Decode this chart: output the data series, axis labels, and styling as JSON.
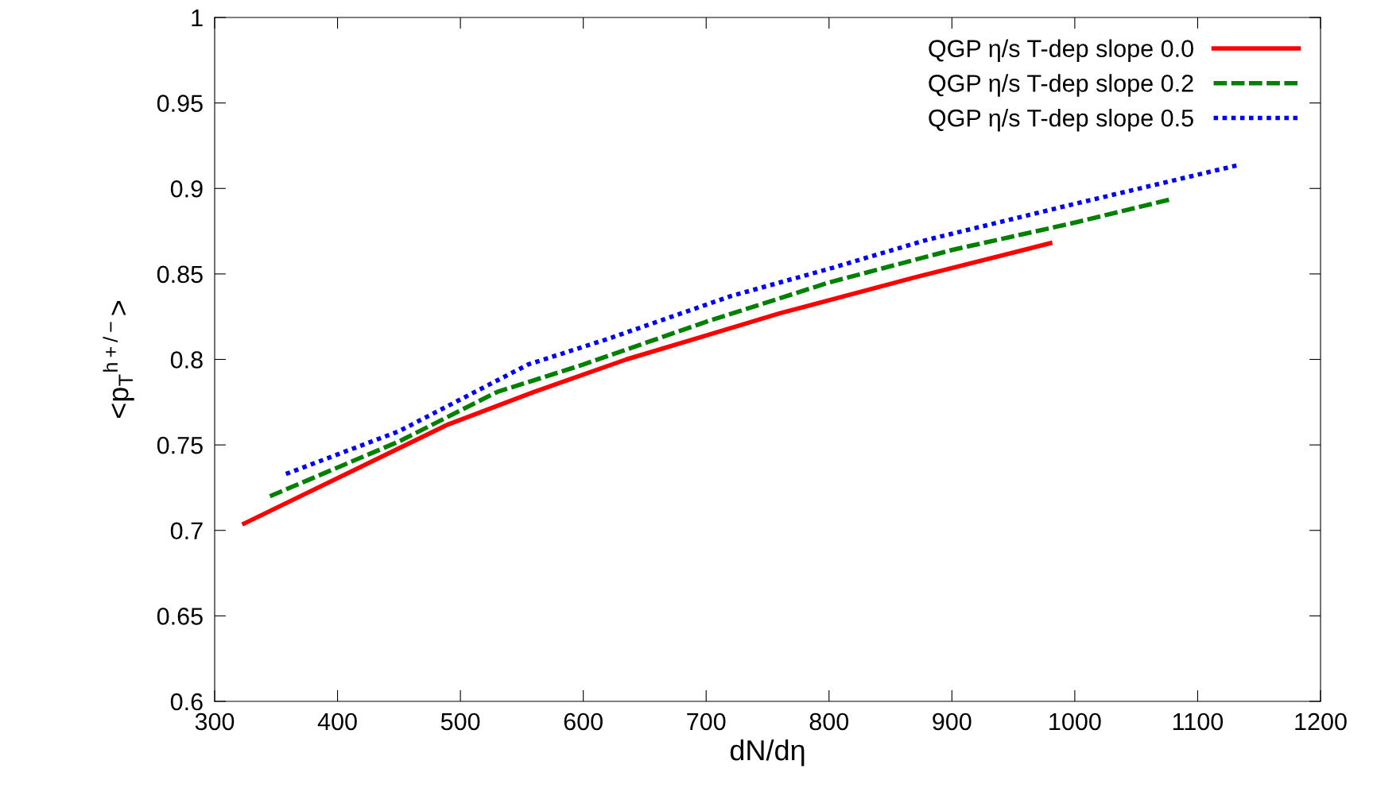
{
  "chart_data": {
    "type": "line",
    "xlabel": "dN/dη",
    "ylabel": "<p$_{T}$$^{h+/−}$>",
    "xlim": [
      300,
      1200
    ],
    "xticks": [
      300,
      400,
      500,
      600,
      700,
      800,
      900,
      1000,
      1100,
      1200
    ],
    "ylim": [
      0.6,
      1
    ],
    "yticks": [
      0.6,
      0.65,
      0.7,
      0.75,
      0.8,
      0.85,
      0.9,
      0.95,
      1
    ],
    "grid": false,
    "legend": "top right",
    "marker": "none",
    "series": [
      {
        "name": "QGP η/s T-dep slope 0.0",
        "color": "#ff0000",
        "line_style": "solid",
        "x": [
          324,
          490,
          560,
          635,
          700,
          760,
          870,
          980
        ],
        "values": [
          0.704,
          0.762,
          0.781,
          0.8,
          0.814,
          0.827,
          0.848,
          0.868
        ]
      },
      {
        "name": "QGP η/s T-dep slope 0.2",
        "color": "#008000",
        "line_style": "dashed",
        "x": [
          345,
          450,
          530,
          600,
          700,
          800,
          900,
          1000,
          1080
        ],
        "values": [
          0.72,
          0.752,
          0.781,
          0.797,
          0.822,
          0.845,
          0.864,
          0.88,
          0.894
        ]
      },
      {
        "name": "QGP η/s T-dep slope 0.5",
        "color": "#0000ff",
        "line_style": "dotted",
        "x": [
          358,
          450,
          555,
          620,
          720,
          800,
          880,
          1000,
          1135
        ],
        "values": [
          0.733,
          0.758,
          0.797,
          0.812,
          0.837,
          0.853,
          0.87,
          0.891,
          0.914
        ]
      }
    ]
  }
}
